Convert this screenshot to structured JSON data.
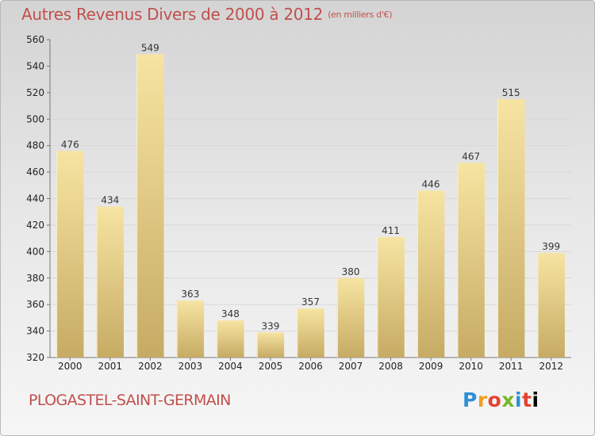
{
  "header": {
    "title": "Autres Revenus Divers de 2000 à 2012",
    "unit": "(en milliers d'€)"
  },
  "footer": {
    "commune": "PLOGASTEL-SAINT-GERMAIN",
    "logo": [
      "P",
      "r",
      "o",
      "x",
      "i",
      "t",
      "i"
    ]
  },
  "chart_data": {
    "type": "bar",
    "title": "Autres Revenus Divers de 2000 à 2012",
    "subtitle": "(en milliers d'€)",
    "categories": [
      "2000",
      "2001",
      "2002",
      "2003",
      "2004",
      "2005",
      "2006",
      "2007",
      "2008",
      "2009",
      "2010",
      "2011",
      "2012"
    ],
    "values": [
      476,
      434,
      549,
      363,
      348,
      339,
      357,
      380,
      411,
      446,
      467,
      515,
      399
    ],
    "ylim": [
      320,
      560
    ],
    "yticks": [
      320,
      340,
      360,
      380,
      400,
      420,
      440,
      460,
      480,
      500,
      520,
      540,
      560
    ],
    "grid": true,
    "colors": {
      "bar_light": "#f6e3a0",
      "bar_dark": "#c8ad66",
      "text_accent": "#c0504d"
    }
  }
}
